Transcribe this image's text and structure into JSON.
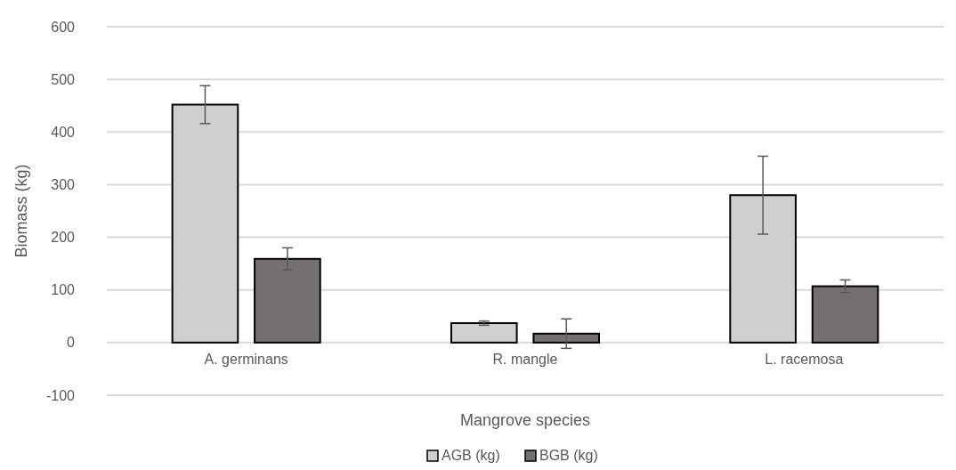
{
  "chart_data": {
    "type": "bar",
    "xlabel": "Mangrove species",
    "ylabel": "Biomass (kg)",
    "categories": [
      "A. germinans",
      "R. mangle",
      "L. racemosa"
    ],
    "series": [
      {
        "name": "AGB (kg)",
        "color": "#d0cecf",
        "values": [
          452,
          37,
          280
        ],
        "errors": [
          36,
          4,
          74
        ]
      },
      {
        "name": "BGB (kg)",
        "color": "#767171",
        "values": [
          159,
          17,
          107
        ],
        "errors": [
          21,
          28,
          12
        ]
      }
    ],
    "ylim": [
      -100,
      600
    ],
    "yticks": [
      -100,
      0,
      100,
      200,
      300,
      400,
      500,
      600
    ],
    "grid": "y",
    "legend": "bottom"
  }
}
